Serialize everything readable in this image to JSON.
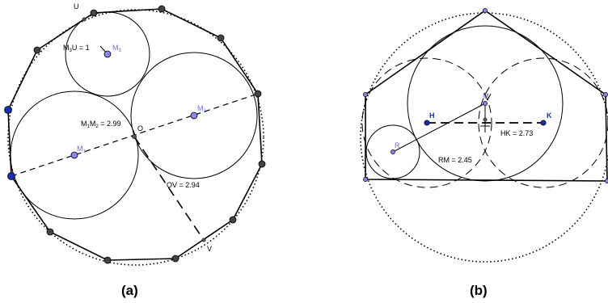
{
  "panel_a": {
    "caption": "(a)",
    "points": {
      "U": "U",
      "V": "V",
      "O": "O",
      "M1": "M",
      "M1_sub": "1",
      "M2": "M",
      "M2_sub": "2",
      "M3": "M",
      "M3_sub": "3"
    },
    "measures": {
      "m3u_pre": "M",
      "m3u_sub": "3",
      "m3u_post": "U = 1",
      "m1m2_pre": "M",
      "m1m2_sub1": "1",
      "m1m2_mid": "M",
      "m1m2_sub2": "2",
      "m1m2_post": " = 2.99",
      "ov": "OV = 2.94"
    }
  },
  "panel_b": {
    "caption": "(b)",
    "points": {
      "R": "R",
      "M": "M",
      "H": "H",
      "K": "K"
    },
    "measures": {
      "rm": "RM = 2.45",
      "hk": "HK = 2.73"
    }
  },
  "colors": {
    "line": "#000000",
    "vertex_dark": "#444444",
    "vertex_blue": "#1a2fb0",
    "center_fill": "#8888ee"
  }
}
